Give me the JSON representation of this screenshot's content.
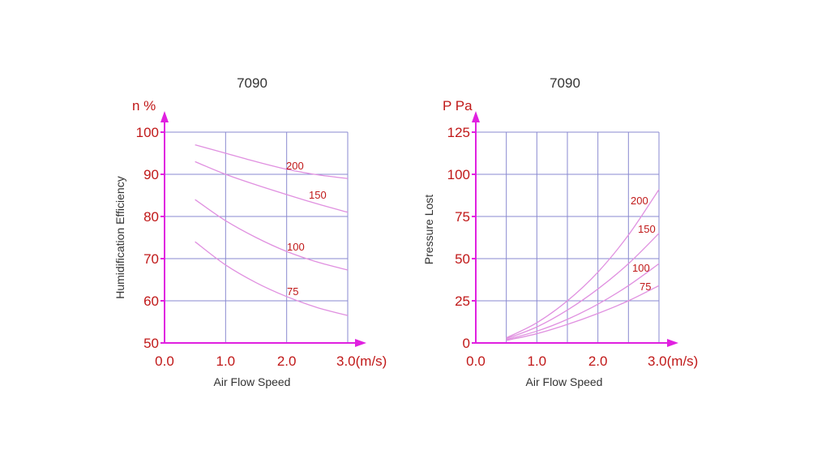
{
  "colors": {
    "axis": "#e020e0",
    "grid": "#8a8ad0",
    "tick_text": "#c01818",
    "curve": "#e090e0",
    "curve_label": "#c01818",
    "title": "#333333"
  },
  "chart_data": [
    {
      "type": "line",
      "title": "7090",
      "xlabel": "Air Flow Speed",
      "ylabel": "Humidification Efficiency",
      "y_unit": "n %",
      "x_unit": "(m/s)",
      "xlim": [
        0,
        3.0
      ],
      "ylim": [
        50,
        100
      ],
      "x_gridlines": [
        0,
        1.0,
        2.0,
        3.0
      ],
      "y_gridlines": [
        50,
        60,
        70,
        80,
        90,
        100
      ],
      "x_tick_labels": [
        "0.0",
        "1.0",
        "2.0",
        "3.0(m/s)"
      ],
      "y_tick_labels": [
        "50",
        "60",
        "70",
        "80",
        "90",
        "100"
      ],
      "grid": true,
      "series": [
        {
          "name": "200",
          "x": [
            0.5,
            1.0,
            1.5,
            2.0,
            2.5,
            3.0
          ],
          "y": [
            97,
            95,
            93,
            91.2,
            89.9,
            89
          ]
        },
        {
          "name": "150",
          "x": [
            0.5,
            1.0,
            1.5,
            2.0,
            2.5,
            3.0
          ],
          "y": [
            93,
            90,
            87.5,
            85.2,
            83,
            81
          ]
        },
        {
          "name": "100",
          "x": [
            0.5,
            1.0,
            1.5,
            2.0,
            2.5,
            3.0
          ],
          "y": [
            84,
            79,
            75,
            71.7,
            69.2,
            67.3
          ]
        },
        {
          "name": "75",
          "x": [
            0.5,
            1.0,
            1.5,
            2.0,
            2.5,
            3.0
          ],
          "y": [
            74,
            68.5,
            64.3,
            61,
            58.4,
            56.5
          ]
        }
      ]
    },
    {
      "type": "line",
      "title": "7090",
      "xlabel": "Air Flow Speed",
      "ylabel": "Pressure Lost",
      "y_unit": "P Pa",
      "x_unit": "(m/s)",
      "xlim": [
        0,
        3.0
      ],
      "ylim": [
        0,
        125
      ],
      "x_gridlines": [
        0,
        0.5,
        1.0,
        1.5,
        2.0,
        2.5,
        3.0
      ],
      "y_gridlines": [
        0,
        25,
        50,
        75,
        100,
        125
      ],
      "x_tick_labels": [
        "0.0",
        "1.0",
        "2.0",
        "3.0(m/s)"
      ],
      "y_tick_labels": [
        "0",
        "25",
        "50",
        "75",
        "100",
        "125"
      ],
      "grid": true,
      "series": [
        {
          "name": "200",
          "x": [
            0.5,
            1.0,
            1.5,
            2.0,
            2.5,
            3.0
          ],
          "y": [
            3,
            12,
            25,
            42,
            64,
            91
          ]
        },
        {
          "name": "150",
          "x": [
            0.5,
            1.0,
            1.5,
            2.0,
            2.5,
            3.0
          ],
          "y": [
            2.5,
            9.5,
            19.5,
            32,
            47,
            65
          ]
        },
        {
          "name": "100",
          "x": [
            0.5,
            1.0,
            1.5,
            2.0,
            2.5,
            3.0
          ],
          "y": [
            2,
            7,
            14,
            23,
            34,
            47
          ]
        },
        {
          "name": "75",
          "x": [
            0.5,
            1.0,
            1.5,
            2.0,
            2.5,
            3.0
          ],
          "y": [
            1.5,
            5.5,
            11,
            17.5,
            25,
            34
          ]
        }
      ]
    }
  ]
}
